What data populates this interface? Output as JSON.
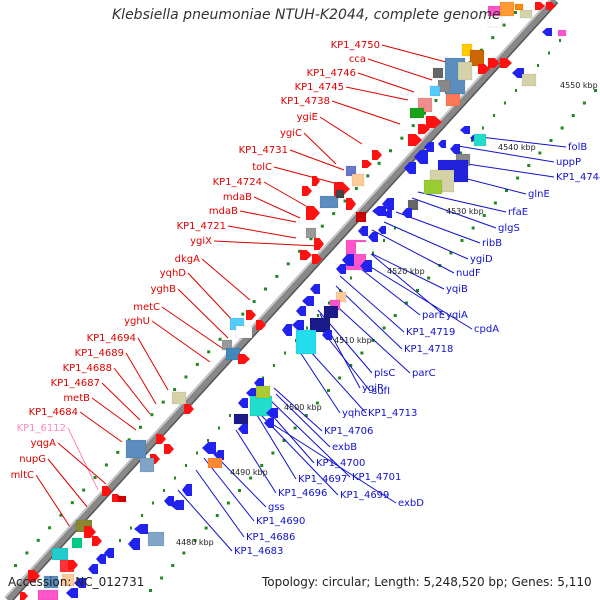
{
  "title": "Klebsiella pneumoniae NTUH-K2044, complete genome",
  "footer": {
    "accession": "Accession: NC_012731",
    "summary": "Topology: circular; Length: 5,248,520 bp; Genes: 5,110"
  },
  "colors": {
    "forward_label": "#dd0000",
    "reverse_label": "#1111cc",
    "pseudo_label": "#ff88bb",
    "backbone": "#888888",
    "tick": "#228822"
  },
  "kbp_marks": [
    "4550 kbp",
    "4540 kbp",
    "4530 kbp",
    "4520 kbp",
    "4510 kbp",
    "4500 kbp",
    "4490 kbp",
    "4480 kbp"
  ],
  "left_labels": [
    "KP1_4750",
    "cca",
    "KP1_4746",
    "KP1_4745",
    "KP1_4738",
    "ygiE",
    "ygiC",
    "KP1_4731",
    "tolC",
    "KP1_4724",
    "mdaB",
    "mdaB",
    "KP1_4721",
    "ygiX",
    "dkgA",
    "yqhD",
    "yghB",
    "metC",
    "yghU",
    "KP1_4694",
    "KP1_4689",
    "KP1_4688",
    "KP1_4687",
    "metB",
    "KP1_4684",
    "KP1_6112",
    "yqgA",
    "nupG",
    "mltC"
  ],
  "right_labels": [
    "folB",
    "uppP",
    "KP1_4744",
    "glnE",
    "rfaE",
    "glgS",
    "ribB",
    "ygiD",
    "nudF",
    "yqiB",
    "parE",
    "yqiA",
    "cpdA",
    "KP1_4719",
    "KP1_4718",
    "plsC",
    "parC",
    "sufI",
    "ygiR",
    "yqhC",
    "KP1_4713",
    "KP1_4706",
    "exbB",
    "KP1_4700",
    "KP1_4701",
    "KP1_4697",
    "KP1_4699",
    "exbD",
    "KP1_4696",
    "gss",
    "KP1_4690",
    "KP1_4686",
    "KP1_4683"
  ]
}
